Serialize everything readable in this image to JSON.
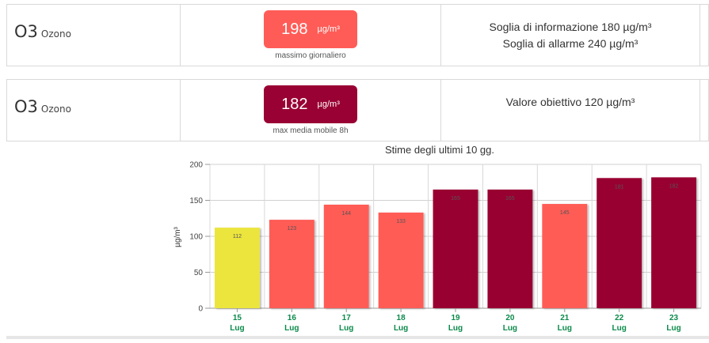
{
  "rows": [
    {
      "pollutant_code": "O3",
      "pollutant_name": "Ozono",
      "badge_value": "198",
      "badge_unit": "µg/m³",
      "badge_color": "#ff5c57",
      "badge_caption": "massimo giornaliero",
      "threshold_lines": [
        "Soglia di informazione 180 µg/m³",
        "Soglia di allarme 240 µg/m³"
      ]
    },
    {
      "pollutant_code": "O3",
      "pollutant_name": "Ozono",
      "badge_value": "182",
      "badge_unit": "µg/m³",
      "badge_color": "#990033",
      "badge_caption": "max media mobile 8h",
      "threshold_lines": [
        "Valore obiettivo 120 µg/m³"
      ]
    }
  ],
  "chart_data": {
    "type": "bar",
    "title": "Stime degli ultimi 10 gg.",
    "ylabel": "µg/m³",
    "ylim": [
      0,
      200
    ],
    "yticks": [
      0,
      50,
      100,
      150,
      200
    ],
    "grid": true,
    "categories": [
      {
        "day": "15",
        "month": "Lug"
      },
      {
        "day": "16",
        "month": "Lug"
      },
      {
        "day": "17",
        "month": "Lug"
      },
      {
        "day": "18",
        "month": "Lug"
      },
      {
        "day": "19",
        "month": "Lug"
      },
      {
        "day": "20",
        "month": "Lug"
      },
      {
        "day": "21",
        "month": "Lug"
      },
      {
        "day": "22",
        "month": "Lug"
      },
      {
        "day": "23",
        "month": "Lug"
      }
    ],
    "values": [
      112,
      123,
      144,
      133,
      165,
      165,
      145,
      181,
      182
    ],
    "bar_colors": [
      "#ebe53d",
      "#ff5c57",
      "#ff5c57",
      "#ff5c57",
      "#990033",
      "#990033",
      "#ff5c57",
      "#990033",
      "#990033"
    ],
    "category_label_color": "#0a8a4a"
  }
}
